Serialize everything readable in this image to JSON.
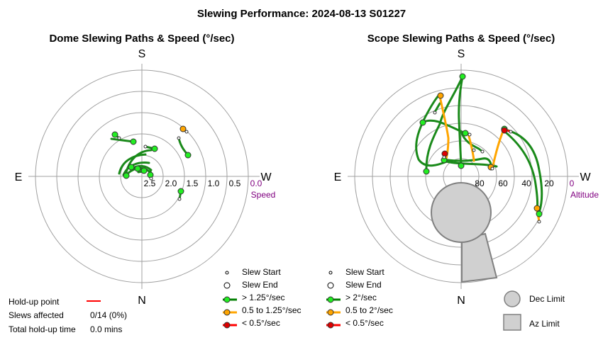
{
  "title": "Slewing Performance: 2024-08-13 S01227",
  "chart_data": [
    {
      "type": "polar-paths",
      "title": "Dome Slewing Paths & Speed (°/sec)",
      "cardinals": {
        "top": "S",
        "bottom": "N",
        "left": "E",
        "right": "W"
      },
      "radial_axis": {
        "label": "Speed",
        "ticks": [
          "2.5",
          "2.0",
          "1.5",
          "1.0",
          "0.5",
          "0.0"
        ]
      },
      "legend": [
        {
          "marker": "start",
          "label": "Slew Start"
        },
        {
          "marker": "end",
          "label": "Slew End"
        },
        {
          "marker": "line",
          "color": "#008000",
          "label": "> 1.25°/sec"
        },
        {
          "marker": "line",
          "color": "#ffa500",
          "label": "0.5 to 1.25°/sec"
        },
        {
          "marker": "line",
          "color": "#ff0000",
          "label": "< 0.5°/sec"
        }
      ]
    },
    {
      "type": "polar-paths",
      "title": "Scope Slewing Paths & Speed (°/sec)",
      "cardinals": {
        "top": "S",
        "bottom": "N",
        "left": "E",
        "right": "W"
      },
      "radial_axis": {
        "label": "Altitude",
        "ticks": [
          "80",
          "60",
          "40",
          "20",
          "0"
        ]
      },
      "legend": [
        {
          "marker": "start",
          "label": "Slew Start"
        },
        {
          "marker": "end",
          "label": "Slew End"
        },
        {
          "marker": "line",
          "color": "#008000",
          "label": "> 2°/sec"
        },
        {
          "marker": "line",
          "color": "#ffa500",
          "label": "0.5 to 2°/sec"
        },
        {
          "marker": "line",
          "color": "#ff0000",
          "label": "< 0.5°/sec"
        }
      ],
      "limits_legend": [
        {
          "shape": "circle",
          "label": "Dec Limit"
        },
        {
          "shape": "square",
          "label": "Az Limit"
        }
      ]
    }
  ],
  "holdup": {
    "point_label": "Hold-up point",
    "slews_label": "Slews affected",
    "slews_value": "0/14 (0%)",
    "time_label": "Total hold-up time",
    "time_value": "0.0 mins"
  }
}
